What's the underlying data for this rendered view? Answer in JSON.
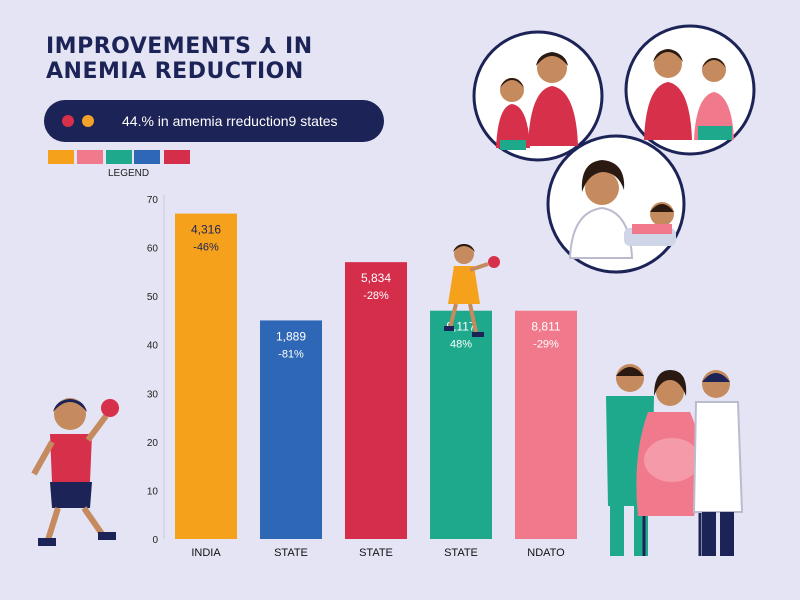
{
  "header": {
    "title_line1": "IMPROVEMENTS ⅄ IN",
    "title_line2": "ANEMIA REDUCTION",
    "banner_text": "44.% in amemia rreduction9 states",
    "legend_label": "LEGEND"
  },
  "colors": {
    "navy": "#1c2356",
    "dot_red": "#d6304a",
    "dot_orange": "#f2a12a",
    "swatches": [
      "#f6a11c",
      "#f07a8c",
      "#1fa98c",
      "#2e67b6",
      "#d42e4a"
    ]
  },
  "chart_data": {
    "type": "bar",
    "title": "",
    "xlabel": "",
    "ylabel": "",
    "ylim": [
      0,
      70
    ],
    "yticks": [
      0,
      10,
      20,
      30,
      40,
      50,
      60,
      70
    ],
    "grid": false,
    "categories": [
      "INDIA",
      "STATE",
      "STATE",
      "STATE",
      "NDATO"
    ],
    "values": [
      67,
      45,
      57,
      47,
      47
    ],
    "value_labels": [
      "4,316",
      "1,889",
      "5,834",
      "9,117",
      "8,811"
    ],
    "percent_labels": [
      "-46%",
      "-81%",
      "-28%",
      "48%",
      "-29%"
    ],
    "colors": [
      "#f6a11c",
      "#2e67b6",
      "#d42e4a",
      "#1fa98c",
      "#f07a8c"
    ]
  },
  "illustrations": [
    "boy-and-mother-illustration",
    "mother-and-child-illustration",
    "nurse-and-patient-illustration",
    "girl-with-apple-illustration",
    "boy-running-with-apple-illustration",
    "pregnant-woman-with-doctors-illustration"
  ]
}
